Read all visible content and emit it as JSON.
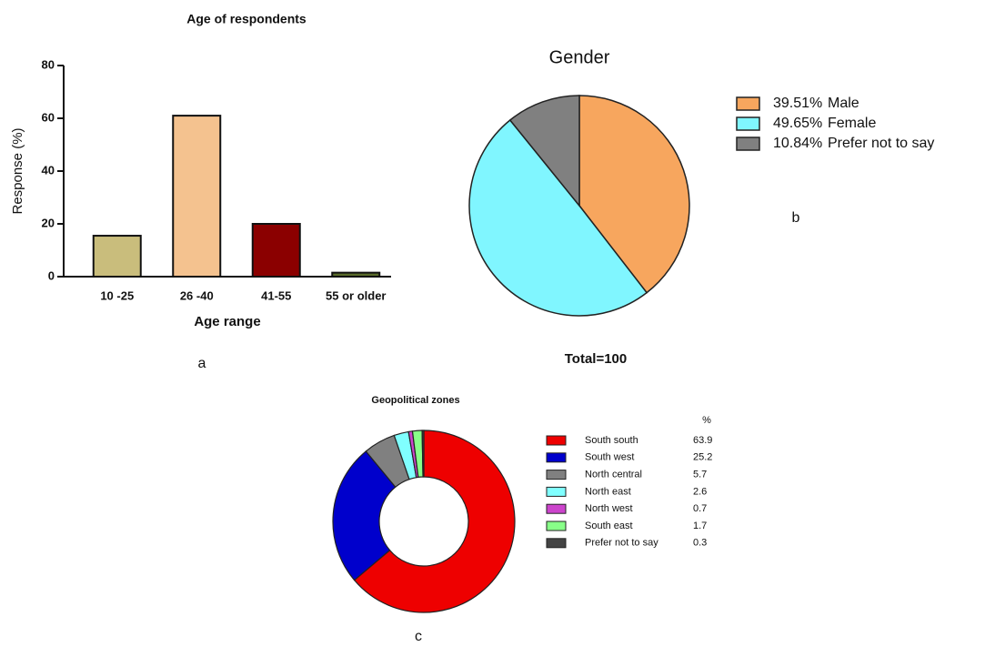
{
  "chart_data": [
    {
      "type": "bar",
      "title": "Age of respondents",
      "panel_label": "a",
      "xlabel": "Age range",
      "ylabel": "Response (%)",
      "categories": [
        "10 -25",
        "26 -40",
        "41-55",
        "55 or older"
      ],
      "values": [
        15.5,
        61,
        20,
        1.5
      ],
      "colors": [
        "#c9bd7c",
        "#f4c28f",
        "#8b0000",
        "#5a6b2a"
      ],
      "ylim": [
        0,
        80
      ],
      "yticks": [
        0,
        20,
        40,
        60,
        80
      ]
    },
    {
      "type": "pie",
      "title": "Gender",
      "panel_label": "b",
      "annotation": "Total=100",
      "categories": [
        "Male",
        "Female",
        "Prefer not to say"
      ],
      "values": [
        39.51,
        49.65,
        10.84
      ],
      "value_labels": [
        "39.51%",
        "49.65%",
        "10.84%"
      ],
      "colors": [
        "#f7a65e",
        "#80f6ff",
        "#808080"
      ]
    },
    {
      "type": "donut",
      "title": "Geopolitical zones",
      "panel_label": "c",
      "legend_header": "%",
      "categories": [
        "South south",
        "South west",
        "North central",
        "North east",
        "North west",
        "South east",
        "Prefer not to say"
      ],
      "values": [
        63.9,
        25.2,
        5.7,
        2.6,
        0.7,
        1.7,
        0.3
      ],
      "colors": [
        "#ee0000",
        "#0000cc",
        "#808080",
        "#80ffff",
        "#cc44cc",
        "#88ff88",
        "#444444"
      ]
    }
  ]
}
